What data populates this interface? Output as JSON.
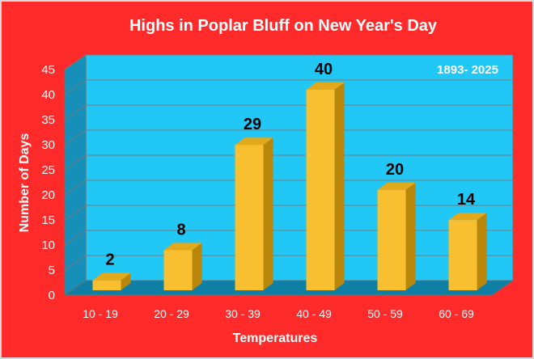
{
  "chart_data": {
    "type": "bar",
    "title": "Highs in Poplar Bluff on New Year's Day",
    "annotation": "1893- 2025",
    "xlabel": "Temperatures",
    "ylabel": "Number of Days",
    "categories": [
      "10 - 19",
      "20 - 29",
      "30 - 39",
      "40 - 49",
      "50 - 59",
      "60 - 69"
    ],
    "values": [
      2,
      8,
      29,
      40,
      20,
      14
    ],
    "ylim": [
      0,
      45
    ],
    "yticks": [
      0,
      5,
      10,
      15,
      20,
      25,
      30,
      35,
      40,
      45
    ],
    "grid": true,
    "legend": "none",
    "colors": {
      "background": "#ff2a2a",
      "plot_wall": "#22c8f5",
      "side_wall": "#1690b8",
      "floor": "#0f7fa6",
      "bar_front": "#f8c030",
      "bar_side": "#b8860b",
      "bar_top": "#e2a91c",
      "text_light": "#ffffff",
      "data_label": "#000000",
      "grid": "#7a7a7a"
    }
  }
}
